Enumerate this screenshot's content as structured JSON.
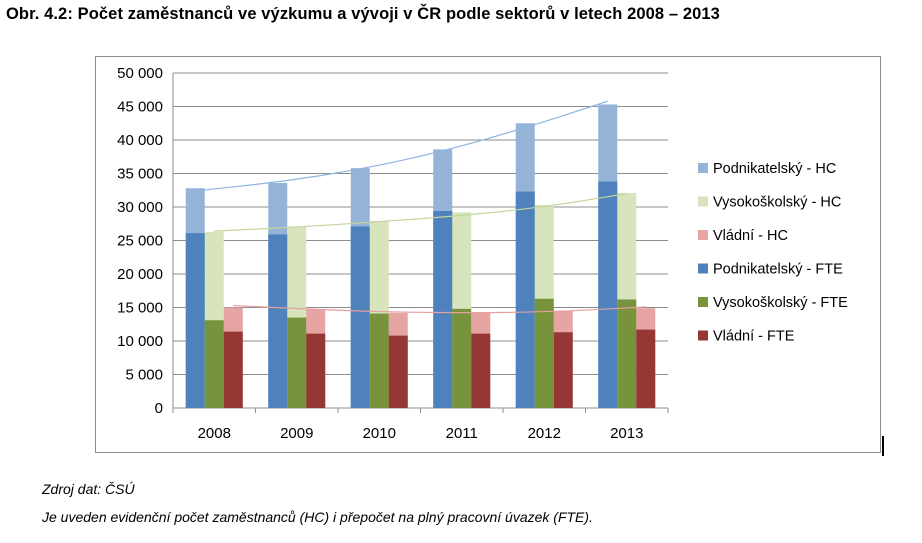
{
  "title": "Obr. 4.2: Počet zaměstnanců  ve výzkumu a vývoji v ČR podle sektorů v letech 2008 – 2013",
  "source_note": "Zdroj dat: ČSÚ",
  "footnote": "Je uveden evidenční počet zaměstnanců (HC) i přepočet na plný pracovní úvazek (FTE).",
  "chart_data": {
    "type": "bar",
    "title": "Obr. 4.2: Počet zaměstnanců  ve výzkumu a vývoji v ČR podle sektorů v letech 2008 – 2013",
    "xlabel": "",
    "ylabel": "",
    "categories": [
      "2008",
      "2009",
      "2010",
      "2011",
      "2012",
      "2013"
    ],
    "ylim": [
      0,
      50000
    ],
    "yticks": [
      0,
      5000,
      10000,
      15000,
      20000,
      25000,
      30000,
      35000,
      40000,
      45000,
      50000
    ],
    "ytick_labels": [
      "0",
      "5 000",
      "10 000",
      "15 000",
      "20 000",
      "25 000",
      "30 000",
      "35 000",
      "40 000",
      "45 000",
      "50 000"
    ],
    "grid": true,
    "legend_position": "right",
    "series": [
      {
        "name": "Podnikatelský - HC",
        "group": 0,
        "layer": "HC",
        "color": "#95b3d7",
        "values": [
          32800,
          33600,
          35800,
          38600,
          42500,
          45300
        ]
      },
      {
        "name": "Vysokoškolský - HC",
        "group": 1,
        "layer": "HC",
        "color": "#d7e4bd",
        "values": [
          26300,
          27100,
          27900,
          29200,
          30300,
          32100
        ]
      },
      {
        "name": "Vládní - HC",
        "group": 2,
        "layer": "HC",
        "color": "#e6a4a3",
        "values": [
          15000,
          14700,
          14200,
          14200,
          14500,
          14900
        ]
      },
      {
        "name": "Podnikatelský - FTE",
        "group": 0,
        "layer": "FTE",
        "color": "#4f81bd",
        "values": [
          26100,
          25900,
          27100,
          29400,
          32300,
          33800
        ]
      },
      {
        "name": "Vysokoškolský - FTE",
        "group": 1,
        "layer": "FTE",
        "color": "#77933c",
        "values": [
          13100,
          13500,
          14100,
          14800,
          16300,
          16200
        ]
      },
      {
        "name": "Vládní - FTE",
        "group": 2,
        "layer": "FTE",
        "color": "#953735",
        "values": [
          11400,
          11100,
          10800,
          11100,
          11300,
          11700
        ]
      }
    ],
    "trendlines": [
      {
        "series": "Podnikatelský - HC",
        "color": "#8eb4e3",
        "values": [
          32400,
          33700,
          35600,
          38300,
          41800,
          45800
        ]
      },
      {
        "series": "Vysokoškolský - HC",
        "color": "#c3d69b",
        "values": [
          26400,
          27000,
          27800,
          28700,
          30000,
          32000
        ]
      },
      {
        "series": "Vládní - HC",
        "color": "#e6a09e",
        "values": [
          15300,
          14700,
          14300,
          14200,
          14400,
          15100
        ]
      }
    ]
  }
}
